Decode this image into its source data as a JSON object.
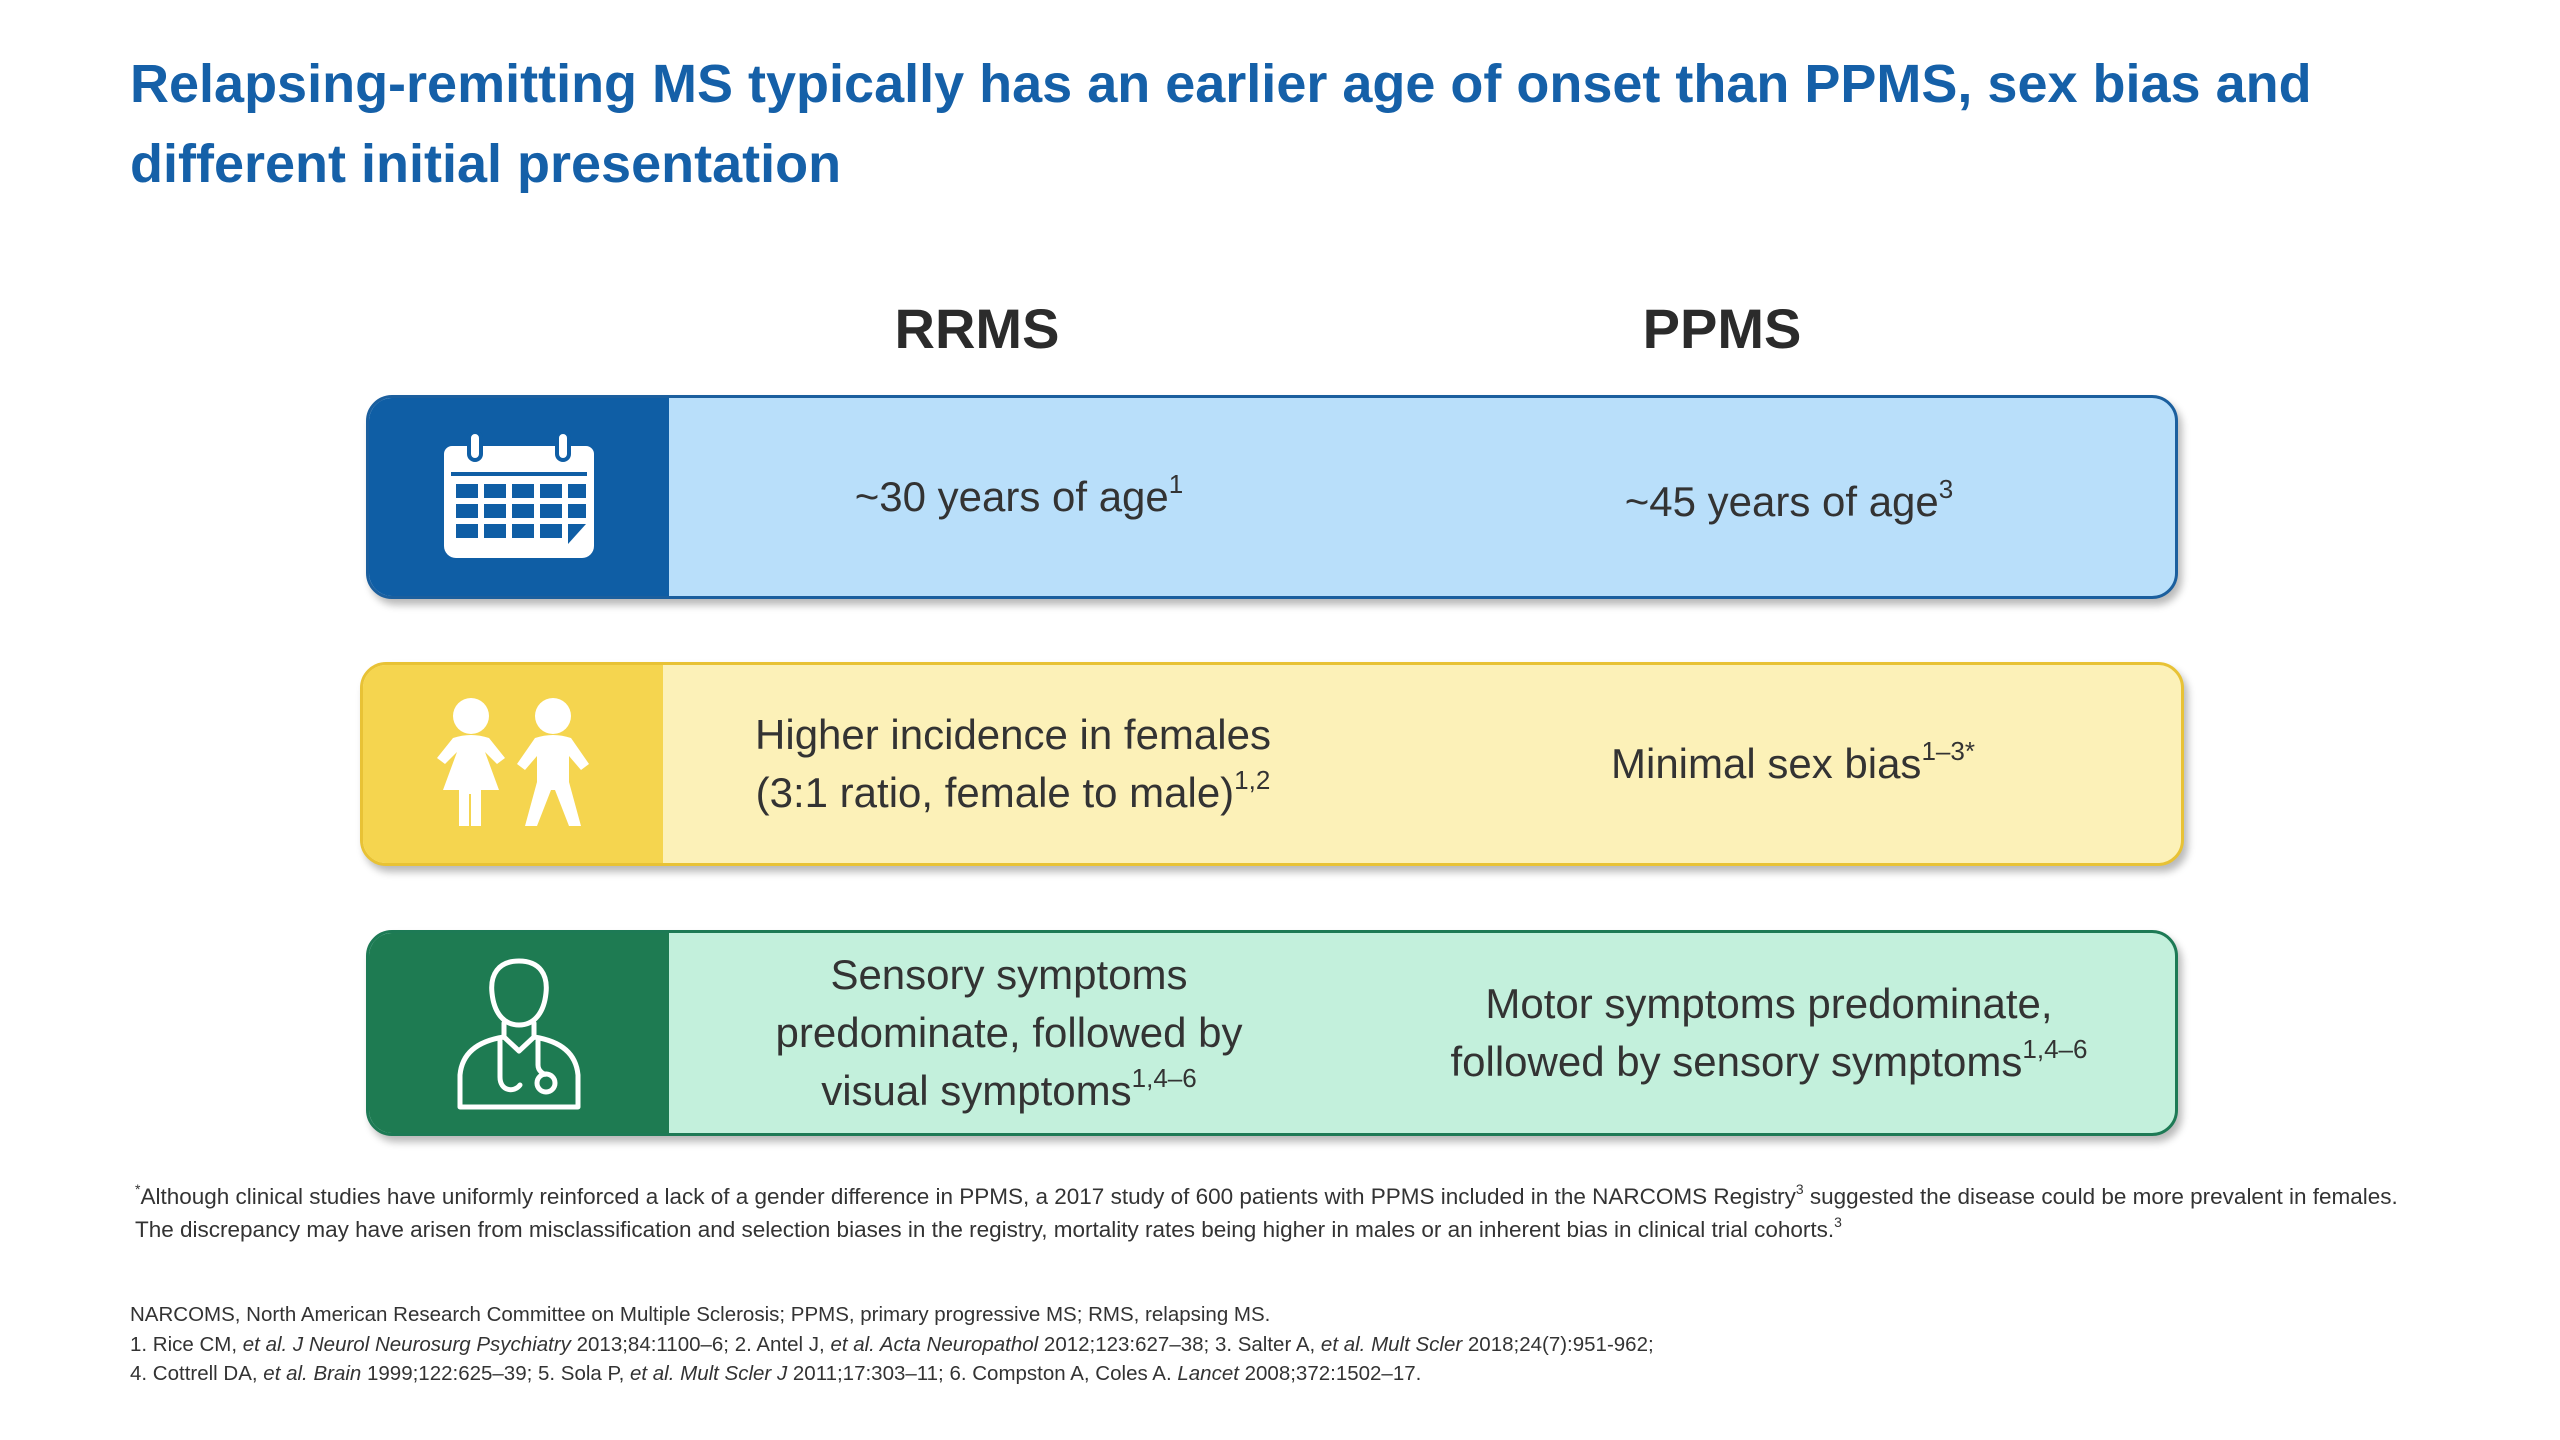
{
  "title": "Relapsing-remitting MS typically has an earlier age of onset than PPMS, sex bias and different initial presentation",
  "columns": {
    "left": "RRMS",
    "right": "PPMS"
  },
  "rows": {
    "age": {
      "icon": "calendar-icon",
      "rrms": {
        "text": "~30 years of age",
        "sup": "1"
      },
      "ppms": {
        "text": "~45 years of age",
        "sup": "3"
      }
    },
    "sex": {
      "icon": "girl-boy-icon",
      "rrms": {
        "line1": "Higher incidence in females",
        "line2": "(3:1 ratio, female to male)",
        "sup": "1,2"
      },
      "ppms": {
        "text": "Minimal sex bias",
        "sup": "1–3*"
      }
    },
    "symptoms": {
      "icon": "doctor-stethoscope-icon",
      "rrms": {
        "line1": "Sensory symptoms",
        "line2": "predominate, followed by",
        "line3": "visual symptoms",
        "sup": "1,4–6"
      },
      "ppms": {
        "line1": "Motor symptoms predominate,",
        "line2": "followed by sensory symptoms",
        "sup": "1,4–6"
      }
    }
  },
  "footnote": {
    "marker": "*",
    "part1": "Although clinical studies have uniformly reinforced a lack of a gender difference in PPMS, a 2017 study of 600 patients with PPMS included in the NARCOMS Registry",
    "sup1": "3",
    "part2": " suggested the disease could be more prevalent in females. The discrepancy may have arisen from misclassification and selection biases in the registry, mortality rates being higher in males or an inherent bias in clinical trial cohorts.",
    "sup2": "3"
  },
  "abbreviations": "NARCOMS, North American Research Committee on Multiple Sclerosis; PPMS, primary progressive MS; RMS, relapsing MS.",
  "references": [
    {
      "prefix": "1. Rice CM, ",
      "etal": "et al.",
      "journal": " J Neurol Neurosurg Psychiatry",
      "cite": " 2013;84:1100–6; "
    },
    {
      "prefix": "2. Antel J, ",
      "etal": "et al.",
      "journal": " Acta Neuropathol",
      "cite": " 2012;123:627–38; "
    },
    {
      "prefix": "3. Salter A, ",
      "etal": "et al.",
      "journal": " Mult Scler",
      "cite": " 2018;24(7):951-962;"
    },
    {
      "prefix": "4. Cottrell DA, ",
      "etal": "et al.",
      "journal": " Brain",
      "cite": " 1999;122:625–39; "
    },
    {
      "prefix": "5. Sola P, ",
      "etal": "et al.",
      "journal": " Mult Scler J",
      "cite": " 2011;17:303–11; "
    },
    {
      "prefix": "6. Compston A, Coles A. ",
      "etal": "",
      "journal": "Lancet",
      "cite": " 2008;372:1502–17."
    }
  ],
  "colors": {
    "title": "#1560a8",
    "age_dark": "#0f5ea5",
    "age_light": "#b9dffa",
    "sex_dark": "#f5d54f",
    "sex_light": "#fcf1b8",
    "symptoms_dark": "#1e7b52",
    "symptoms_light": "#c3f0dc"
  }
}
